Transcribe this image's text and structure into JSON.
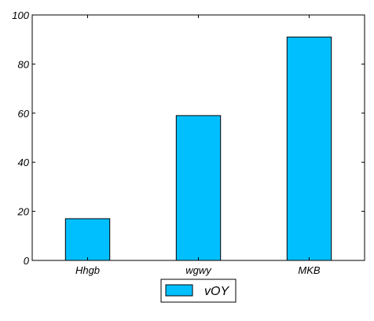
{
  "chart_data": {
    "type": "bar",
    "categories": [
      "Hhgb",
      "wgwy",
      "MKB"
    ],
    "series": [
      {
        "name": "vOY",
        "values": [
          17,
          59,
          91
        ],
        "color": "#00bfff"
      }
    ],
    "title": "",
    "xlabel": "",
    "ylabel": "",
    "ylim": [
      0,
      100
    ],
    "yticks": [
      0,
      20,
      40,
      60,
      80,
      100
    ],
    "grid": false,
    "legend": {
      "placement": "bottom-center"
    }
  }
}
